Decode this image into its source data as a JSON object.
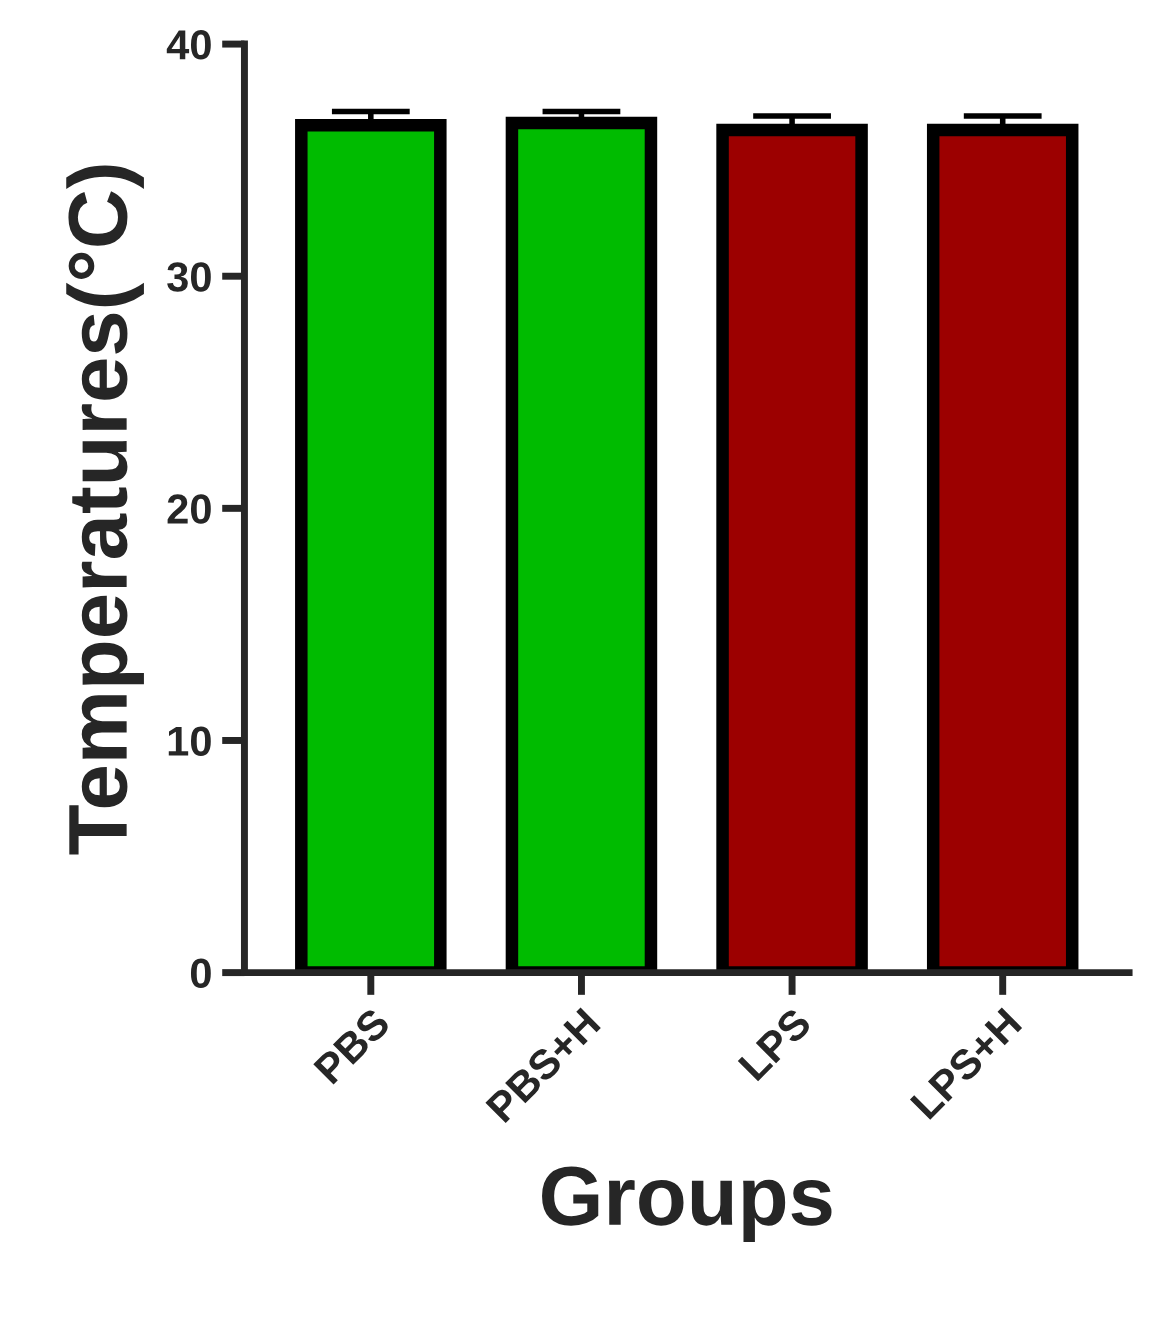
{
  "chart_data": {
    "type": "bar",
    "xlabel": "Groups",
    "ylabel": "Temperatures(°C)",
    "categories": [
      "PBS",
      "PBS+H",
      "LPS",
      "LPS+H"
    ],
    "values": [
      36.5,
      36.6,
      36.3,
      36.3
    ],
    "errors": [
      0.6,
      0.5,
      0.6,
      0.6
    ],
    "colors": [
      "#00bb00",
      "#00bb00",
      "#9c0000",
      "#9c0000"
    ],
    "ylim": [
      0,
      40
    ],
    "yticks": [
      0,
      10,
      20,
      30,
      40
    ],
    "grid": false
  }
}
